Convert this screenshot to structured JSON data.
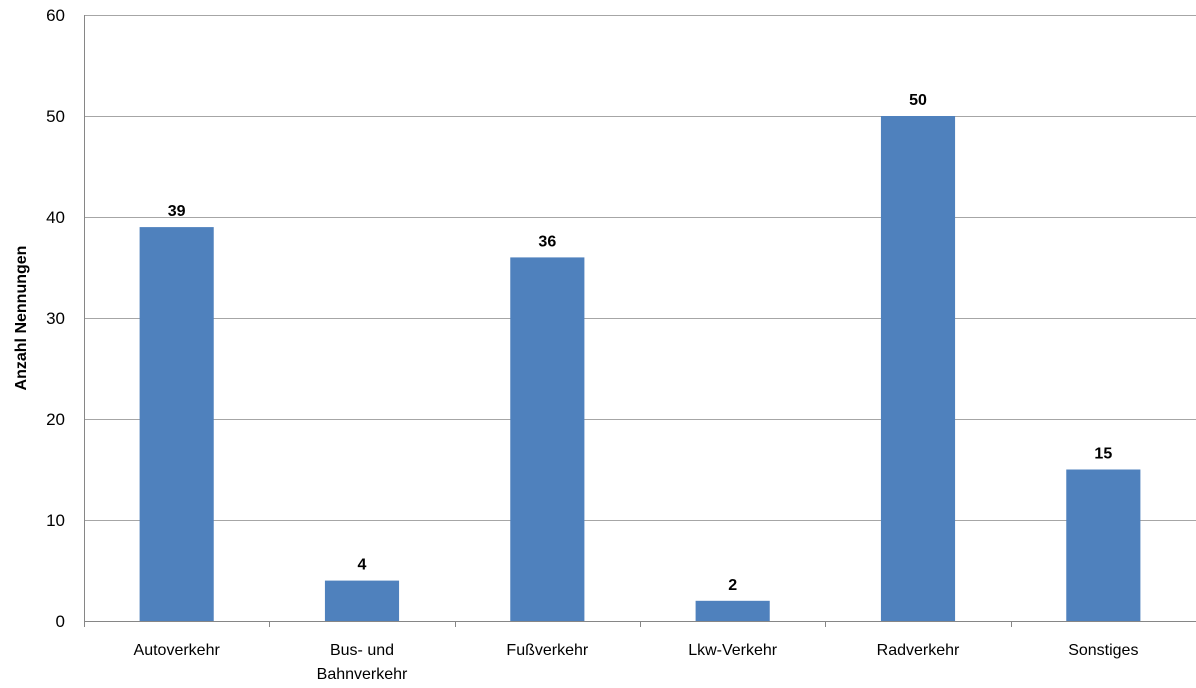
{
  "chart_data": {
    "type": "bar",
    "categories": [
      "Autoverkehr",
      "Bus- und Bahnverkehr",
      "Fußverkehr",
      "Lkw-Verkehr",
      "Radverkehr",
      "Sonstiges"
    ],
    "category_lines": [
      [
        "Autoverkehr"
      ],
      [
        "Bus- und",
        "Bahnverkehr"
      ],
      [
        "Fußverkehr"
      ],
      [
        "Lkw-Verkehr"
      ],
      [
        "Radverkehr"
      ],
      [
        "Sonstiges"
      ]
    ],
    "values": [
      39,
      4,
      36,
      2,
      50,
      15
    ],
    "data_labels": [
      "39",
      "4",
      "36",
      "2",
      "50",
      "15"
    ],
    "ylabel": "Anzahl Nennungen",
    "xlabel": "",
    "ylim": [
      0,
      60
    ],
    "yticks": [
      0,
      10,
      20,
      30,
      40,
      50,
      60
    ],
    "grid": true,
    "bar_color": "#4f81bd",
    "legend": "none"
  }
}
